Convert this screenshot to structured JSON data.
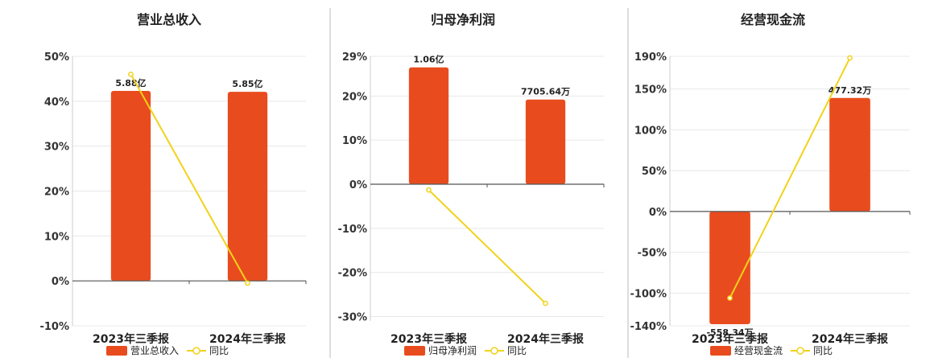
{
  "colors": {
    "bar": "#E84C1E",
    "line": "#F2D21A",
    "grid": "#E8E8E8",
    "axis": "#555555",
    "divider": "#BBBBBB"
  },
  "chart_data": [
    {
      "type": "bar",
      "title": "营业总收入",
      "categories": [
        "2023年三季报",
        "2024年三季报"
      ],
      "bar_series": {
        "name": "营业总收入",
        "labels": [
          "5.88亿",
          "5.85亿"
        ],
        "heights_pct": [
          42.3,
          42.1
        ]
      },
      "line_series": {
        "name": "同比",
        "values": [
          46.0,
          -0.5
        ]
      },
      "ylim": [
        -10,
        50
      ],
      "yticks": [
        -10,
        0,
        10,
        20,
        30,
        40,
        50
      ],
      "ytick_labels": [
        "-10%",
        "0%",
        "10%",
        "20%",
        "30%",
        "40%",
        "50%"
      ],
      "legend": "bottom",
      "grid": true
    },
    {
      "type": "bar",
      "title": "归母净利润",
      "categories": [
        "2023年三季报",
        "2024年三季报"
      ],
      "bar_series": {
        "name": "归母净利润",
        "labels": [
          "1.06亿",
          "7705.64万"
        ],
        "heights_pct": [
          26.5,
          19.2
        ]
      },
      "line_series": {
        "name": "同比",
        "values": [
          -1.3,
          -27.0
        ]
      },
      "ylim": [
        -31,
        29
      ],
      "yticks": [
        -30,
        -20,
        -10,
        0,
        10,
        20,
        29
      ],
      "ytick_labels": [
        "-30%",
        "-20%",
        "-10%",
        "0%",
        "10%",
        "20%",
        "29%"
      ],
      "legend": "bottom",
      "grid": true
    },
    {
      "type": "bar",
      "title": "经营现金流",
      "categories": [
        "2023年三季报",
        "2024年三季报"
      ],
      "bar_series": {
        "name": "经营现金流",
        "labels": [
          "-558.34万",
          "477.32万"
        ],
        "heights_pct": [
          -138,
          139
        ]
      },
      "line_series": {
        "name": "同比",
        "values": [
          -106,
          188
        ]
      },
      "ylim": [
        -140,
        190
      ],
      "yticks": [
        -140,
        -100,
        -50,
        0,
        50,
        100,
        150,
        190
      ],
      "ytick_labels": [
        "-140%",
        "-100%",
        "-50%",
        "0%",
        "50%",
        "100%",
        "150%",
        "190%"
      ],
      "legend": "bottom",
      "grid": true
    }
  ]
}
